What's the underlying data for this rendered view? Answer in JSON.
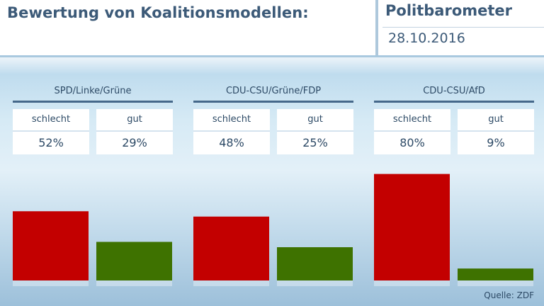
{
  "header": {
    "title": "Bewertung von Koalitionsmodellen:",
    "brand": "Politbarometer",
    "date": "28.10.2016"
  },
  "colors": {
    "schlecht": "#c30000",
    "gut": "#3e7200"
  },
  "chart_data": {
    "type": "bar",
    "title": "Bewertung von Koalitionsmodellen:",
    "categories": [
      "SPD/Linke/Grüne",
      "CDU-CSU/Grüne/FDP",
      "CDU-CSU/AfD"
    ],
    "series": [
      {
        "name": "schlecht",
        "values": [
          52,
          48,
          80
        ],
        "labels": [
          "52%",
          "48%",
          "80%"
        ]
      },
      {
        "name": "gut",
        "values": [
          29,
          25,
          9
        ],
        "labels": [
          "29%",
          "25%",
          "9%"
        ]
      }
    ],
    "unit": "%",
    "ylim": [
      0,
      100
    ],
    "grid": false,
    "legend": "none"
  },
  "groups": [
    {
      "name": "SPD/Linke/Grüne",
      "left_label": "schlecht",
      "right_label": "gut",
      "left_value": "52%",
      "right_value": "29%"
    },
    {
      "name": "CDU-CSU/Grüne/FDP",
      "left_label": "schlecht",
      "right_label": "gut",
      "left_value": "48%",
      "right_value": "25%"
    },
    {
      "name": "CDU-CSU/AfD",
      "left_label": "schlecht",
      "right_label": "gut",
      "left_value": "80%",
      "right_value": "9%"
    }
  ],
  "footer": {
    "source": "Quelle: ZDF"
  }
}
